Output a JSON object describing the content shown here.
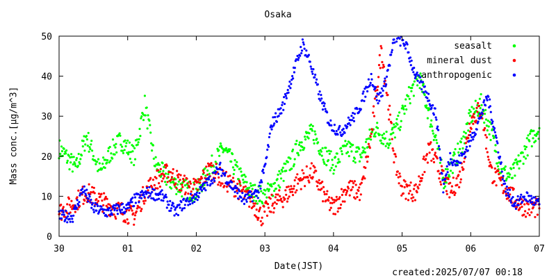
{
  "chart_data": {
    "type": "scatter",
    "title": "Osaka",
    "xlabel": "Date(JST)",
    "ylabel": "Mass conc.[μg/m^3]",
    "footer": "created:2025/07/07 00:18",
    "xlim": [
      0,
      7
    ],
    "ylim": [
      0,
      50
    ],
    "x_ticks": [
      0,
      1,
      2,
      3,
      4,
      5,
      6,
      7
    ],
    "x_tick_labels": [
      "30",
      "01",
      "02",
      "03",
      "04",
      "05",
      "06",
      "07"
    ],
    "y_ticks": [
      0,
      10,
      20,
      30,
      40,
      50
    ],
    "y_tick_labels": [
      "0",
      "10",
      "20",
      "30",
      "40",
      "50"
    ],
    "grid": false,
    "legend_position": "top-right",
    "series": [
      {
        "name": "seasalt",
        "color": "#00ff00",
        "x": [
          0,
          0.25,
          0.4,
          0.6,
          0.75,
          0.9,
          1.1,
          1.25,
          1.4,
          1.6,
          1.8,
          2.0,
          2.2,
          2.4,
          2.6,
          2.8,
          3.0,
          3.2,
          3.4,
          3.5,
          3.7,
          3.85,
          4.0,
          4.2,
          4.4,
          4.6,
          4.8,
          4.95,
          5.1,
          5.25,
          5.4,
          5.5,
          5.6,
          5.7,
          5.85,
          6.0,
          6.15,
          6.3,
          6.45,
          6.6,
          6.75,
          6.9,
          7.0
        ],
        "y": [
          22,
          17,
          25,
          16,
          21,
          24,
          20,
          33,
          18,
          14,
          12,
          11,
          17,
          22,
          16,
          11,
          10,
          14,
          19,
          23,
          26,
          21,
          18,
          22,
          20,
          27,
          24,
          28,
          35,
          40,
          30,
          24,
          14,
          17,
          22,
          30,
          33,
          26,
          16,
          15,
          20,
          25,
          27
        ]
      },
      {
        "name": "mineral dust",
        "color": "#ff0000",
        "x": [
          0,
          0.2,
          0.4,
          0.6,
          0.8,
          0.95,
          1.1,
          1.25,
          1.4,
          1.6,
          1.8,
          2.0,
          2.2,
          2.4,
          2.6,
          2.8,
          2.95,
          3.1,
          3.3,
          3.5,
          3.7,
          3.9,
          4.0,
          4.2,
          4.4,
          4.55,
          4.7,
          4.8,
          4.9,
          5.0,
          5.2,
          5.4,
          5.55,
          5.7,
          5.85,
          6.0,
          6.15,
          6.3,
          6.5,
          6.7,
          6.85,
          7.0
        ],
        "y": [
          6,
          8,
          11,
          9,
          7,
          6,
          5,
          11,
          14,
          16,
          13,
          12,
          17,
          14,
          12,
          9,
          5,
          8,
          10,
          14,
          16,
          9,
          7,
          12,
          11,
          25,
          47,
          33,
          18,
          12,
          11,
          22,
          16,
          11,
          15,
          29,
          32,
          16,
          12,
          8,
          7,
          7
        ]
      },
      {
        "name": "anthropogenic",
        "color": "#0000ff",
        "x": [
          0,
          0.2,
          0.35,
          0.5,
          0.7,
          0.9,
          1.0,
          1.1,
          1.3,
          1.5,
          1.7,
          1.8,
          2.0,
          2.2,
          2.35,
          2.5,
          2.7,
          2.9,
          3.0,
          3.1,
          3.25,
          3.4,
          3.55,
          3.65,
          3.8,
          3.95,
          4.1,
          4.3,
          4.4,
          4.55,
          4.65,
          4.75,
          4.9,
          5.05,
          5.2,
          5.35,
          5.5,
          5.6,
          5.7,
          5.8,
          5.95,
          6.1,
          6.25,
          6.4,
          6.5,
          6.65,
          6.8,
          7.0
        ],
        "y": [
          5,
          5,
          12,
          7,
          6,
          7,
          7,
          9,
          11,
          10,
          6,
          8,
          10,
          14,
          17,
          13,
          9,
          11,
          17,
          28,
          32,
          40,
          48,
          44,
          35,
          28,
          26,
          30,
          33,
          40,
          34,
          38,
          50,
          48,
          40,
          36,
          30,
          12,
          20,
          18,
          22,
          28,
          35,
          22,
          12,
          8,
          10,
          8
        ]
      }
    ]
  }
}
